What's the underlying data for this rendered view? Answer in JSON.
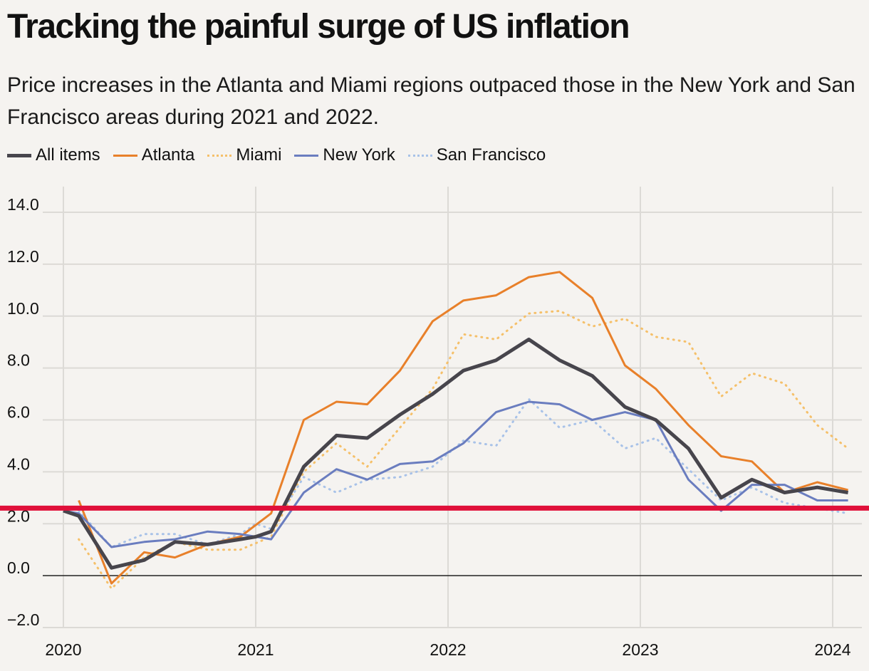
{
  "title": "Tracking the painful surge of US inflation",
  "subtitle": "Price increases in the Atlanta and Miami regions outpaced those in the New York and San Francisco areas during 2021 and 2022.",
  "chart_data": {
    "type": "line",
    "title": "Tracking the painful surge of US inflation",
    "subtitle": "Price increases in the Atlanta and Miami regions outpaced those in the New York and San Francisco areas during 2021 and 2022.",
    "xlabel": "",
    "ylabel": "",
    "ylim": [
      -2,
      14
    ],
    "xlim": [
      2020,
      2024.15
    ],
    "yticks": [
      -2,
      0,
      2,
      4,
      6,
      8,
      10,
      12,
      14
    ],
    "ytick_labels": [
      "−2.0",
      "0.0",
      "2.0",
      "4.0",
      "6.0",
      "8.0",
      "10.0",
      "12.0",
      "14.0"
    ],
    "xticks": [
      2020,
      2021,
      2022,
      2023,
      2024
    ],
    "xtick_labels": [
      "2020",
      "2021",
      "2022",
      "2023",
      "2024"
    ],
    "grid": true,
    "legend_position": "top-left",
    "reference_line": {
      "y": 2.6,
      "color": "#e0103a"
    },
    "series": [
      {
        "name": "All items",
        "color": "#47454c",
        "style": "solid",
        "width": 5,
        "points": [
          [
            2020.0,
            2.5
          ],
          [
            2020.08,
            2.3
          ],
          [
            2020.25,
            0.3
          ],
          [
            2020.42,
            0.6
          ],
          [
            2020.58,
            1.3
          ],
          [
            2020.75,
            1.2
          ],
          [
            2020.92,
            1.4
          ],
          [
            2021.0,
            1.5
          ],
          [
            2021.08,
            1.7
          ],
          [
            2021.25,
            4.2
          ],
          [
            2021.42,
            5.4
          ],
          [
            2021.58,
            5.3
          ],
          [
            2021.75,
            6.2
          ],
          [
            2021.92,
            7.0
          ],
          [
            2022.08,
            7.9
          ],
          [
            2022.25,
            8.3
          ],
          [
            2022.42,
            9.1
          ],
          [
            2022.58,
            8.3
          ],
          [
            2022.75,
            7.7
          ],
          [
            2022.92,
            6.5
          ],
          [
            2023.08,
            6.0
          ],
          [
            2023.25,
            4.9
          ],
          [
            2023.42,
            3.0
          ],
          [
            2023.58,
            3.7
          ],
          [
            2023.75,
            3.2
          ],
          [
            2023.92,
            3.4
          ],
          [
            2024.08,
            3.2
          ]
        ]
      },
      {
        "name": "Atlanta",
        "color": "#e8802a",
        "style": "solid",
        "width": 3,
        "points": [
          [
            2020.08,
            2.9
          ],
          [
            2020.25,
            -0.3
          ],
          [
            2020.42,
            0.9
          ],
          [
            2020.58,
            0.7
          ],
          [
            2020.75,
            1.2
          ],
          [
            2020.92,
            1.5
          ],
          [
            2021.08,
            2.4
          ],
          [
            2021.25,
            6.0
          ],
          [
            2021.42,
            6.7
          ],
          [
            2021.58,
            6.6
          ],
          [
            2021.75,
            7.9
          ],
          [
            2021.92,
            9.8
          ],
          [
            2022.08,
            10.6
          ],
          [
            2022.25,
            10.8
          ],
          [
            2022.42,
            11.5
          ],
          [
            2022.58,
            11.7
          ],
          [
            2022.75,
            10.7
          ],
          [
            2022.92,
            8.1
          ],
          [
            2023.08,
            7.2
          ],
          [
            2023.25,
            5.8
          ],
          [
            2023.42,
            4.6
          ],
          [
            2023.58,
            4.4
          ],
          [
            2023.75,
            3.2
          ],
          [
            2023.92,
            3.6
          ],
          [
            2024.08,
            3.3
          ]
        ]
      },
      {
        "name": "Miami",
        "color": "#f5c06a",
        "style": "dotted",
        "width": 3,
        "points": [
          [
            2020.08,
            1.4
          ],
          [
            2020.25,
            -0.5
          ],
          [
            2020.42,
            0.7
          ],
          [
            2020.58,
            1.3
          ],
          [
            2020.75,
            1.0
          ],
          [
            2020.92,
            1.0
          ],
          [
            2021.08,
            1.5
          ],
          [
            2021.25,
            4.0
          ],
          [
            2021.42,
            5.1
          ],
          [
            2021.58,
            4.2
          ],
          [
            2021.75,
            5.7
          ],
          [
            2021.92,
            7.2
          ],
          [
            2022.08,
            9.3
          ],
          [
            2022.25,
            9.1
          ],
          [
            2022.42,
            10.1
          ],
          [
            2022.58,
            10.2
          ],
          [
            2022.75,
            9.6
          ],
          [
            2022.92,
            9.9
          ],
          [
            2023.08,
            9.2
          ],
          [
            2023.25,
            9.0
          ],
          [
            2023.42,
            6.9
          ],
          [
            2023.58,
            7.8
          ],
          [
            2023.75,
            7.4
          ],
          [
            2023.92,
            5.8
          ],
          [
            2024.08,
            4.9
          ]
        ]
      },
      {
        "name": "New York",
        "color": "#6a7dbf",
        "style": "solid",
        "width": 3,
        "points": [
          [
            2020.0,
            2.5
          ],
          [
            2020.08,
            2.4
          ],
          [
            2020.25,
            1.1
          ],
          [
            2020.42,
            1.3
          ],
          [
            2020.58,
            1.4
          ],
          [
            2020.75,
            1.7
          ],
          [
            2020.92,
            1.6
          ],
          [
            2021.08,
            1.4
          ],
          [
            2021.25,
            3.2
          ],
          [
            2021.42,
            4.1
          ],
          [
            2021.58,
            3.7
          ],
          [
            2021.75,
            4.3
          ],
          [
            2021.92,
            4.4
          ],
          [
            2022.08,
            5.1
          ],
          [
            2022.25,
            6.3
          ],
          [
            2022.42,
            6.7
          ],
          [
            2022.58,
            6.6
          ],
          [
            2022.75,
            6.0
          ],
          [
            2022.92,
            6.3
          ],
          [
            2023.08,
            6.0
          ],
          [
            2023.25,
            3.7
          ],
          [
            2023.42,
            2.5
          ],
          [
            2023.58,
            3.5
          ],
          [
            2023.75,
            3.5
          ],
          [
            2023.92,
            2.9
          ],
          [
            2024.08,
            2.9
          ]
        ]
      },
      {
        "name": "San Francisco",
        "color": "#a8c2e8",
        "style": "dotted",
        "width": 3,
        "points": [
          [
            2020.08,
            2.5
          ],
          [
            2020.25,
            1.1
          ],
          [
            2020.42,
            1.6
          ],
          [
            2020.58,
            1.6
          ],
          [
            2020.75,
            1.2
          ],
          [
            2020.92,
            1.6
          ],
          [
            2021.0,
            2.0
          ],
          [
            2021.08,
            1.8
          ],
          [
            2021.25,
            3.8
          ],
          [
            2021.42,
            3.2
          ],
          [
            2021.58,
            3.7
          ],
          [
            2021.75,
            3.8
          ],
          [
            2021.92,
            4.2
          ],
          [
            2022.08,
            5.2
          ],
          [
            2022.25,
            5.0
          ],
          [
            2022.42,
            6.8
          ],
          [
            2022.58,
            5.7
          ],
          [
            2022.75,
            6.0
          ],
          [
            2022.92,
            4.9
          ],
          [
            2023.08,
            5.3
          ],
          [
            2023.25,
            4.1
          ],
          [
            2023.42,
            2.9
          ],
          [
            2023.58,
            3.4
          ],
          [
            2023.75,
            2.8
          ],
          [
            2023.92,
            2.6
          ],
          [
            2024.08,
            2.4
          ]
        ]
      }
    ]
  }
}
